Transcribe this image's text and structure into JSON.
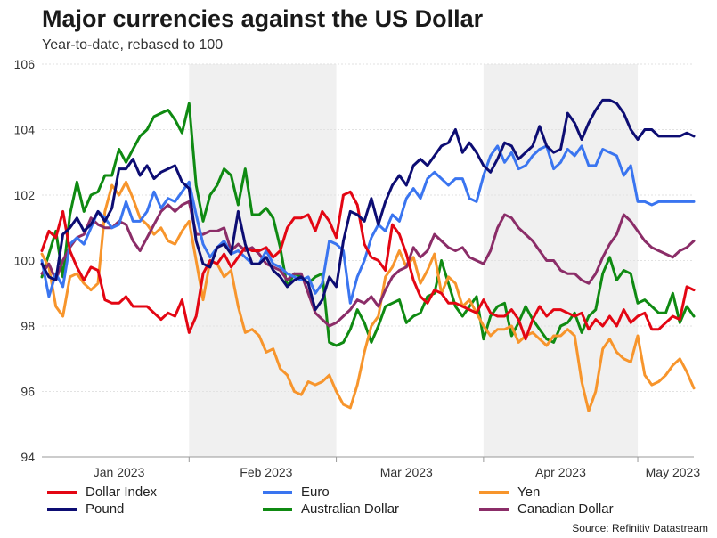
{
  "chart_data": {
    "type": "line",
    "title": "Major currencies against the US Dollar",
    "subtitle": "Year-to-date, rebased to 100",
    "source": "Source: Refinitiv Datastream",
    "xlabel": "",
    "ylabel": "",
    "ylim": [
      94,
      106
    ],
    "yticks": [
      94,
      96,
      98,
      100,
      102,
      104,
      106
    ],
    "xlim": [
      0,
      93
    ],
    "xtick_labels": [
      {
        "label": "Jan 2023",
        "x": 11
      },
      {
        "label": "Feb 2023",
        "x": 32
      },
      {
        "label": "Mar 2023",
        "x": 52
      },
      {
        "label": "Apr 2023",
        "x": 74
      },
      {
        "label": "May 2023",
        "x": 90
      }
    ],
    "month_boundaries": [
      21,
      42,
      63,
      85
    ],
    "shaded_ranges": [
      [
        21,
        42
      ],
      [
        63,
        85
      ]
    ],
    "grid": true,
    "series": [
      {
        "name": "Dollar Index",
        "color": "#e30613",
        "x": [
          0,
          1,
          2,
          3,
          4,
          5,
          6,
          7,
          8,
          9,
          10,
          11,
          12,
          13,
          14,
          15,
          16,
          17,
          18,
          19,
          20,
          21,
          22,
          23,
          24,
          25,
          26,
          27,
          28,
          29,
          30,
          31,
          32,
          33,
          34,
          35,
          36,
          37,
          38,
          39,
          40,
          41,
          42,
          43,
          44,
          45,
          46,
          47,
          48,
          49,
          50,
          51,
          52,
          53,
          54,
          55,
          56,
          57,
          58,
          59,
          60,
          61,
          62,
          63,
          64,
          65,
          66,
          67,
          68,
          69,
          70,
          71,
          72,
          73,
          74,
          75,
          76,
          77,
          78,
          79,
          80,
          81,
          82,
          83,
          84,
          85,
          86,
          87,
          88,
          89,
          90,
          91,
          92,
          93
        ],
        "values": [
          100.3,
          100.9,
          100.7,
          101.5,
          100.3,
          99.8,
          99.4,
          99.8,
          99.7,
          98.8,
          98.7,
          98.7,
          98.9,
          98.6,
          98.6,
          98.6,
          98.4,
          98.2,
          98.4,
          98.3,
          98.8,
          97.8,
          98.3,
          99.6,
          100.0,
          99.9,
          100.2,
          99.8,
          100.1,
          100.4,
          100.3,
          100.3,
          100.4,
          100.1,
          100.3,
          101.0,
          101.3,
          101.3,
          101.4,
          100.9,
          101.5,
          101.2,
          100.7,
          102.0,
          102.1,
          101.7,
          100.5,
          100.1,
          100.0,
          99.7,
          101.1,
          100.8,
          100.2,
          99.4,
          98.9,
          98.7,
          99.1,
          99.0,
          98.7,
          98.7,
          98.6,
          98.5,
          98.4,
          98.8,
          98.4,
          98.3,
          98.3,
          98.5,
          98.2,
          97.6,
          98.2,
          98.6,
          98.3,
          98.5,
          98.5,
          98.4,
          98.3,
          98.4,
          97.9,
          98.2,
          98.0,
          98.3,
          98.0,
          98.5,
          98.1,
          98.3,
          98.4,
          97.9,
          97.9,
          98.1,
          98.3,
          98.2,
          99.2,
          99.1
        ]
      },
      {
        "name": "Euro",
        "color": "#3a75f0",
        "x": [
          0,
          1,
          2,
          3,
          4,
          5,
          6,
          7,
          8,
          9,
          10,
          11,
          12,
          13,
          14,
          15,
          16,
          17,
          18,
          19,
          20,
          21,
          22,
          23,
          24,
          25,
          26,
          27,
          28,
          29,
          30,
          31,
          32,
          33,
          34,
          35,
          36,
          37,
          38,
          39,
          40,
          41,
          42,
          43,
          44,
          45,
          46,
          47,
          48,
          49,
          50,
          51,
          52,
          53,
          54,
          55,
          56,
          57,
          58,
          59,
          60,
          61,
          62,
          63,
          64,
          65,
          66,
          67,
          68,
          69,
          70,
          71,
          72,
          73,
          74,
          75,
          76,
          77,
          78,
          79,
          80,
          81,
          82,
          83,
          84,
          85,
          86,
          87,
          88,
          89,
          90,
          91,
          92,
          93
        ],
        "values": [
          100.0,
          98.9,
          99.6,
          99.2,
          100.5,
          100.7,
          100.5,
          101.0,
          101.5,
          101.3,
          101.0,
          101.1,
          101.8,
          101.2,
          101.2,
          101.5,
          102.1,
          101.6,
          101.9,
          101.8,
          102.1,
          102.4,
          101.4,
          100.5,
          100.1,
          100.4,
          100.6,
          100.2,
          100.3,
          100.1,
          99.9,
          99.9,
          100.3,
          99.9,
          99.8,
          99.6,
          99.5,
          99.4,
          99.5,
          99.0,
          99.3,
          100.6,
          100.5,
          100.3,
          98.7,
          99.5,
          100.0,
          100.7,
          101.1,
          100.9,
          101.4,
          101.2,
          101.9,
          102.2,
          101.9,
          102.5,
          102.7,
          102.5,
          102.3,
          102.5,
          102.5,
          101.9,
          101.8,
          102.6,
          103.2,
          103.5,
          103.0,
          103.3,
          102.8,
          102.9,
          103.2,
          103.4,
          103.5,
          102.8,
          103.0,
          103.4,
          103.2,
          103.5,
          102.9,
          102.9,
          103.4,
          103.3,
          103.2,
          102.6,
          102.9,
          101.8,
          101.8,
          101.7,
          101.8,
          101.8,
          101.8,
          101.8,
          101.8,
          101.8
        ]
      },
      {
        "name": "Yen",
        "color": "#f7952c",
        "x": [
          0,
          1,
          2,
          3,
          4,
          5,
          6,
          7,
          8,
          9,
          10,
          11,
          12,
          13,
          14,
          15,
          16,
          17,
          18,
          19,
          20,
          21,
          22,
          23,
          24,
          25,
          26,
          27,
          28,
          29,
          30,
          31,
          32,
          33,
          34,
          35,
          36,
          37,
          38,
          39,
          40,
          41,
          42,
          43,
          44,
          45,
          46,
          47,
          48,
          49,
          50,
          51,
          52,
          53,
          54,
          55,
          56,
          57,
          58,
          59,
          60,
          61,
          62,
          63,
          64,
          65,
          66,
          67,
          68,
          69,
          70,
          71,
          72,
          73,
          74,
          75,
          76,
          77,
          78,
          79,
          80,
          81,
          82,
          83,
          84,
          85,
          86,
          87,
          88,
          89,
          90,
          91,
          92,
          93
        ],
        "values": [
          100.2,
          99.8,
          98.6,
          98.3,
          99.5,
          99.6,
          99.3,
          99.1,
          99.3,
          101.5,
          102.3,
          102.0,
          102.4,
          101.9,
          101.3,
          101.1,
          100.8,
          101.0,
          100.6,
          100.5,
          100.9,
          101.2,
          100.0,
          98.8,
          100.0,
          99.9,
          99.5,
          99.7,
          98.6,
          97.8,
          97.9,
          97.7,
          97.2,
          97.3,
          96.7,
          96.5,
          96.0,
          95.9,
          96.3,
          96.2,
          96.3,
          96.5,
          96.0,
          95.6,
          95.5,
          96.2,
          97.2,
          98.0,
          98.3,
          99.5,
          99.8,
          100.3,
          99.8,
          100.1,
          99.3,
          99.7,
          100.2,
          99.0,
          99.5,
          99.3,
          98.6,
          98.8,
          98.4,
          98.0,
          97.7,
          97.9,
          97.9,
          98.0,
          97.5,
          97.7,
          97.8,
          97.6,
          97.4,
          97.7,
          97.7,
          97.9,
          97.7,
          96.3,
          95.4,
          96.0,
          97.3,
          97.6,
          97.2,
          97.0,
          96.9,
          97.7,
          96.5,
          96.2,
          96.3,
          96.5,
          96.8,
          97.0,
          96.6,
          96.1
        ]
      },
      {
        "name": "Pound",
        "color": "#0d0d73",
        "x": [
          0,
          1,
          2,
          3,
          4,
          5,
          6,
          7,
          8,
          9,
          10,
          11,
          12,
          13,
          14,
          15,
          16,
          17,
          18,
          19,
          20,
          21,
          22,
          23,
          24,
          25,
          26,
          27,
          28,
          29,
          30,
          31,
          32,
          33,
          34,
          35,
          36,
          37,
          38,
          39,
          40,
          41,
          42,
          43,
          44,
          45,
          46,
          47,
          48,
          49,
          50,
          51,
          52,
          53,
          54,
          55,
          56,
          57,
          58,
          59,
          60,
          61,
          62,
          63,
          64,
          65,
          66,
          67,
          68,
          69,
          70,
          71,
          72,
          73,
          74,
          75,
          76,
          77,
          78,
          79,
          80,
          81,
          82,
          83,
          84,
          85,
          86,
          87,
          88,
          89,
          90,
          91,
          92,
          93
        ],
        "values": [
          99.9,
          99.5,
          99.4,
          100.8,
          101.0,
          101.3,
          100.9,
          101.1,
          101.5,
          101.2,
          101.6,
          102.8,
          102.8,
          103.1,
          102.6,
          102.9,
          102.5,
          102.7,
          102.8,
          102.9,
          102.4,
          102.2,
          100.6,
          99.9,
          99.8,
          100.4,
          100.5,
          100.2,
          101.5,
          100.5,
          99.9,
          99.9,
          100.1,
          99.7,
          99.5,
          99.2,
          99.4,
          99.5,
          99.3,
          98.5,
          98.8,
          99.5,
          99.2,
          100.6,
          101.5,
          101.4,
          101.2,
          101.9,
          101.1,
          101.8,
          102.3,
          102.6,
          102.3,
          102.9,
          103.1,
          102.9,
          103.2,
          103.5,
          103.6,
          104.0,
          103.3,
          103.6,
          103.3,
          102.9,
          102.7,
          103.1,
          103.6,
          103.5,
          103.1,
          103.3,
          103.5,
          104.1,
          103.5,
          103.3,
          103.4,
          104.5,
          104.2,
          103.7,
          104.2,
          104.6,
          104.9,
          104.9,
          104.8,
          104.5,
          104.0,
          103.7,
          104.0,
          104.0,
          103.8,
          103.8,
          103.8,
          103.8,
          103.9,
          103.8
        ]
      },
      {
        "name": "Australian Dollar",
        "color": "#0f8a12",
        "x": [
          0,
          1,
          2,
          3,
          4,
          5,
          6,
          7,
          8,
          9,
          10,
          11,
          12,
          13,
          14,
          15,
          16,
          17,
          18,
          19,
          20,
          21,
          22,
          23,
          24,
          25,
          26,
          27,
          28,
          29,
          30,
          31,
          32,
          33,
          34,
          35,
          36,
          37,
          38,
          39,
          40,
          41,
          42,
          43,
          44,
          45,
          46,
          47,
          48,
          49,
          50,
          51,
          52,
          53,
          54,
          55,
          56,
          57,
          58,
          59,
          60,
          61,
          62,
          63,
          64,
          65,
          66,
          67,
          68,
          69,
          70,
          71,
          72,
          73,
          74,
          75,
          76,
          77,
          78,
          79,
          80,
          81,
          82,
          83,
          84,
          85,
          86,
          87,
          88,
          89,
          90,
          91,
          92,
          93
        ],
        "values": [
          99.5,
          100.2,
          100.9,
          99.5,
          101.4,
          102.4,
          101.5,
          102.0,
          102.1,
          102.6,
          102.6,
          103.4,
          103.0,
          103.4,
          103.8,
          104.0,
          104.4,
          104.5,
          104.6,
          104.3,
          103.9,
          104.8,
          102.3,
          101.2,
          102.0,
          102.3,
          102.8,
          102.6,
          101.7,
          102.8,
          101.4,
          101.4,
          101.6,
          101.3,
          100.4,
          99.2,
          99.6,
          99.5,
          99.3,
          99.5,
          99.6,
          97.5,
          97.4,
          97.5,
          97.9,
          98.5,
          98.1,
          97.5,
          98.0,
          98.6,
          98.7,
          98.8,
          98.1,
          98.3,
          98.4,
          98.9,
          99.0,
          100.0,
          99.3,
          98.6,
          98.3,
          98.6,
          98.9,
          97.6,
          98.3,
          98.6,
          98.7,
          97.7,
          98.1,
          98.6,
          98.2,
          97.9,
          97.6,
          97.5,
          98.0,
          98.1,
          98.4,
          97.8,
          98.3,
          98.5,
          99.6,
          100.1,
          99.4,
          99.7,
          99.6,
          98.7,
          98.8,
          98.6,
          98.4,
          98.4,
          99.0,
          98.1,
          98.6,
          98.3
        ]
      },
      {
        "name": "Canadian Dollar",
        "color": "#8b2d68",
        "x": [
          0,
          1,
          2,
          3,
          4,
          5,
          6,
          7,
          8,
          9,
          10,
          11,
          12,
          13,
          14,
          15,
          16,
          17,
          18,
          19,
          20,
          21,
          22,
          23,
          24,
          25,
          26,
          27,
          28,
          29,
          30,
          31,
          32,
          33,
          34,
          35,
          36,
          37,
          38,
          39,
          40,
          41,
          42,
          43,
          44,
          45,
          46,
          47,
          48,
          49,
          50,
          51,
          52,
          53,
          54,
          55,
          56,
          57,
          58,
          59,
          60,
          61,
          62,
          63,
          64,
          65,
          66,
          67,
          68,
          69,
          70,
          71,
          72,
          73,
          74,
          75,
          76,
          77,
          78,
          79,
          80,
          81,
          82,
          83,
          84,
          85,
          86,
          87,
          88,
          89,
          90,
          91,
          92,
          93
        ],
        "values": [
          99.6,
          99.9,
          99.4,
          100.0,
          100.4,
          100.7,
          100.8,
          101.3,
          101.1,
          101.0,
          101.0,
          101.2,
          101.1,
          100.6,
          100.3,
          100.7,
          101.1,
          101.5,
          101.7,
          101.5,
          101.7,
          101.8,
          100.8,
          100.8,
          100.9,
          100.9,
          101.0,
          100.3,
          100.5,
          100.3,
          100.4,
          100.2,
          99.9,
          99.8,
          99.7,
          99.4,
          99.6,
          99.6,
          99.0,
          98.4,
          98.2,
          98.0,
          98.1,
          98.3,
          98.5,
          98.8,
          98.7,
          98.9,
          98.6,
          99.1,
          99.5,
          99.7,
          99.8,
          100.4,
          100.1,
          100.3,
          100.8,
          100.6,
          100.4,
          100.3,
          100.4,
          100.1,
          100.0,
          99.9,
          100.3,
          101.0,
          101.4,
          101.3,
          101.0,
          100.8,
          100.6,
          100.3,
          100.0,
          100.0,
          99.7,
          99.6,
          99.6,
          99.4,
          99.3,
          99.6,
          100.1,
          100.5,
          100.8,
          101.4,
          101.2,
          100.9,
          100.6,
          100.4,
          100.3,
          100.2,
          100.1,
          100.3,
          100.4,
          100.6
        ]
      }
    ]
  }
}
